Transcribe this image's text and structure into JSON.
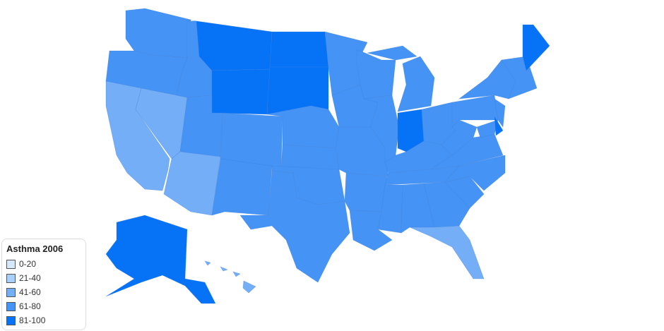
{
  "legend": {
    "title": "Asthma 2006",
    "items": [
      {
        "label": "0-20",
        "color": "#d6e8fc"
      },
      {
        "label": "21-40",
        "color": "#a9d0fb"
      },
      {
        "label": "41-60",
        "color": "#74aef7"
      },
      {
        "label": "61-80",
        "color": "#4493f5"
      },
      {
        "label": "81-100",
        "color": "#0673f7"
      }
    ]
  },
  "states": {
    "WA": "61-80",
    "OR": "61-80",
    "CA": "41-60",
    "NV": "41-60",
    "ID": "61-80",
    "MT": "81-100",
    "WY": "81-100",
    "UT": "61-80",
    "AZ": "41-60",
    "CO": "61-80",
    "NM": "61-80",
    "ND": "81-100",
    "SD": "81-100",
    "NE": "61-80",
    "KS": "61-80",
    "OK": "61-80",
    "TX": "61-80",
    "MN": "61-80",
    "IA": "61-80",
    "MO": "61-80",
    "AR": "61-80",
    "LA": "61-80",
    "WI": "61-80",
    "IL": "61-80",
    "IN": "81-100",
    "MI": "61-80",
    "OH": "61-80",
    "KY": "61-80",
    "TN": "61-80",
    "MS": "61-80",
    "AL": "61-80",
    "GA": "61-80",
    "FL": "41-60",
    "SC": "61-80",
    "NC": "61-80",
    "VA": "61-80",
    "WV": "61-80",
    "PA": "61-80",
    "NY": "61-80",
    "NJ": "61-80",
    "DE": "81-100",
    "MD": "61-80",
    "NE-states": "61-80",
    "ME": "81-100",
    "AK": "81-100",
    "HI": "41-60"
  }
}
